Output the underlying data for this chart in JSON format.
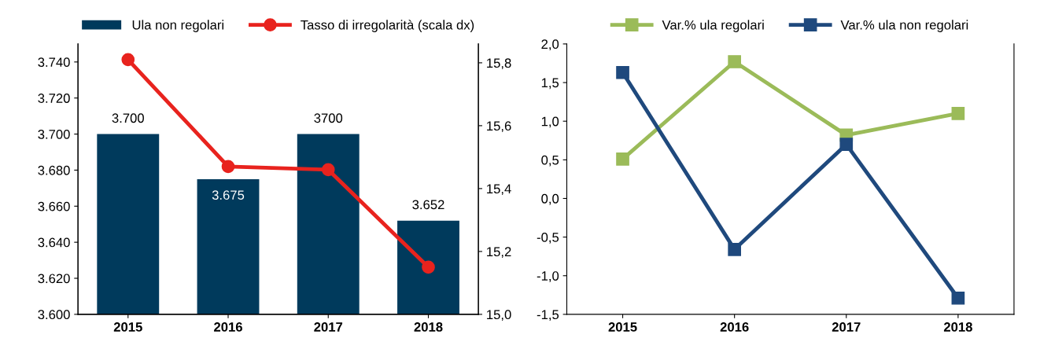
{
  "chart_data": [
    {
      "type": "bar",
      "categories": [
        "2015",
        "2016",
        "2017",
        "2018"
      ],
      "legend": "top",
      "ylim": [
        3600,
        3750
      ],
      "yticks": [
        {
          "value": 3600,
          "label": "3.600"
        },
        {
          "value": 3620,
          "label": "3.620"
        },
        {
          "value": 3640,
          "label": "3.640"
        },
        {
          "value": 3660,
          "label": "3.660"
        },
        {
          "value": 3680,
          "label": "3.680"
        },
        {
          "value": 3700,
          "label": "3.700"
        },
        {
          "value": 3720,
          "label": "3.720"
        },
        {
          "value": 3740,
          "label": "3.740"
        }
      ],
      "y2lim": [
        15.0,
        15.86
      ],
      "y2ticks": [
        {
          "value": 15.0,
          "label": "15,0"
        },
        {
          "value": 15.2,
          "label": "15,2"
        },
        {
          "value": 15.4,
          "label": "15,4"
        },
        {
          "value": 15.6,
          "label": "15,6"
        },
        {
          "value": 15.8,
          "label": "15,8"
        }
      ],
      "series": [
        {
          "name": "Ula non regolari",
          "type": "bar",
          "color": "#003a5c",
          "values": [
            3700,
            3675,
            3700,
            3652
          ],
          "value_labels": [
            "3.700",
            "3.675",
            "3700",
            "3.652"
          ]
        },
        {
          "name": "Tasso di irregolarità (scala dx)",
          "type": "line",
          "axis": "y2",
          "color": "#e8231e",
          "marker": "circle",
          "values": [
            15.81,
            15.47,
            15.46,
            15.15
          ]
        }
      ]
    },
    {
      "type": "line",
      "categories": [
        "2015",
        "2016",
        "2017",
        "2018"
      ],
      "legend": "top",
      "marker": "square",
      "ylim": [
        -1.5,
        2.0
      ],
      "yticks": [
        {
          "value": -1.5,
          "label": "-1,5"
        },
        {
          "value": -1.0,
          "label": "-1,0"
        },
        {
          "value": -0.5,
          "label": "-0,5"
        },
        {
          "value": 0.0,
          "label": "0,0"
        },
        {
          "value": 0.5,
          "label": "0,5"
        },
        {
          "value": 1.0,
          "label": "1,0"
        },
        {
          "value": 1.5,
          "label": "1,5"
        },
        {
          "value": 2.0,
          "label": "2,0"
        }
      ],
      "series": [
        {
          "name": "Var.% ula regolari",
          "color": "#9bbb59",
          "values": [
            0.51,
            1.77,
            0.82,
            1.1
          ]
        },
        {
          "name": "Var.% ula non regolari",
          "color": "#1f497d",
          "values": [
            1.63,
            -0.66,
            0.7,
            -1.29
          ]
        }
      ]
    }
  ]
}
